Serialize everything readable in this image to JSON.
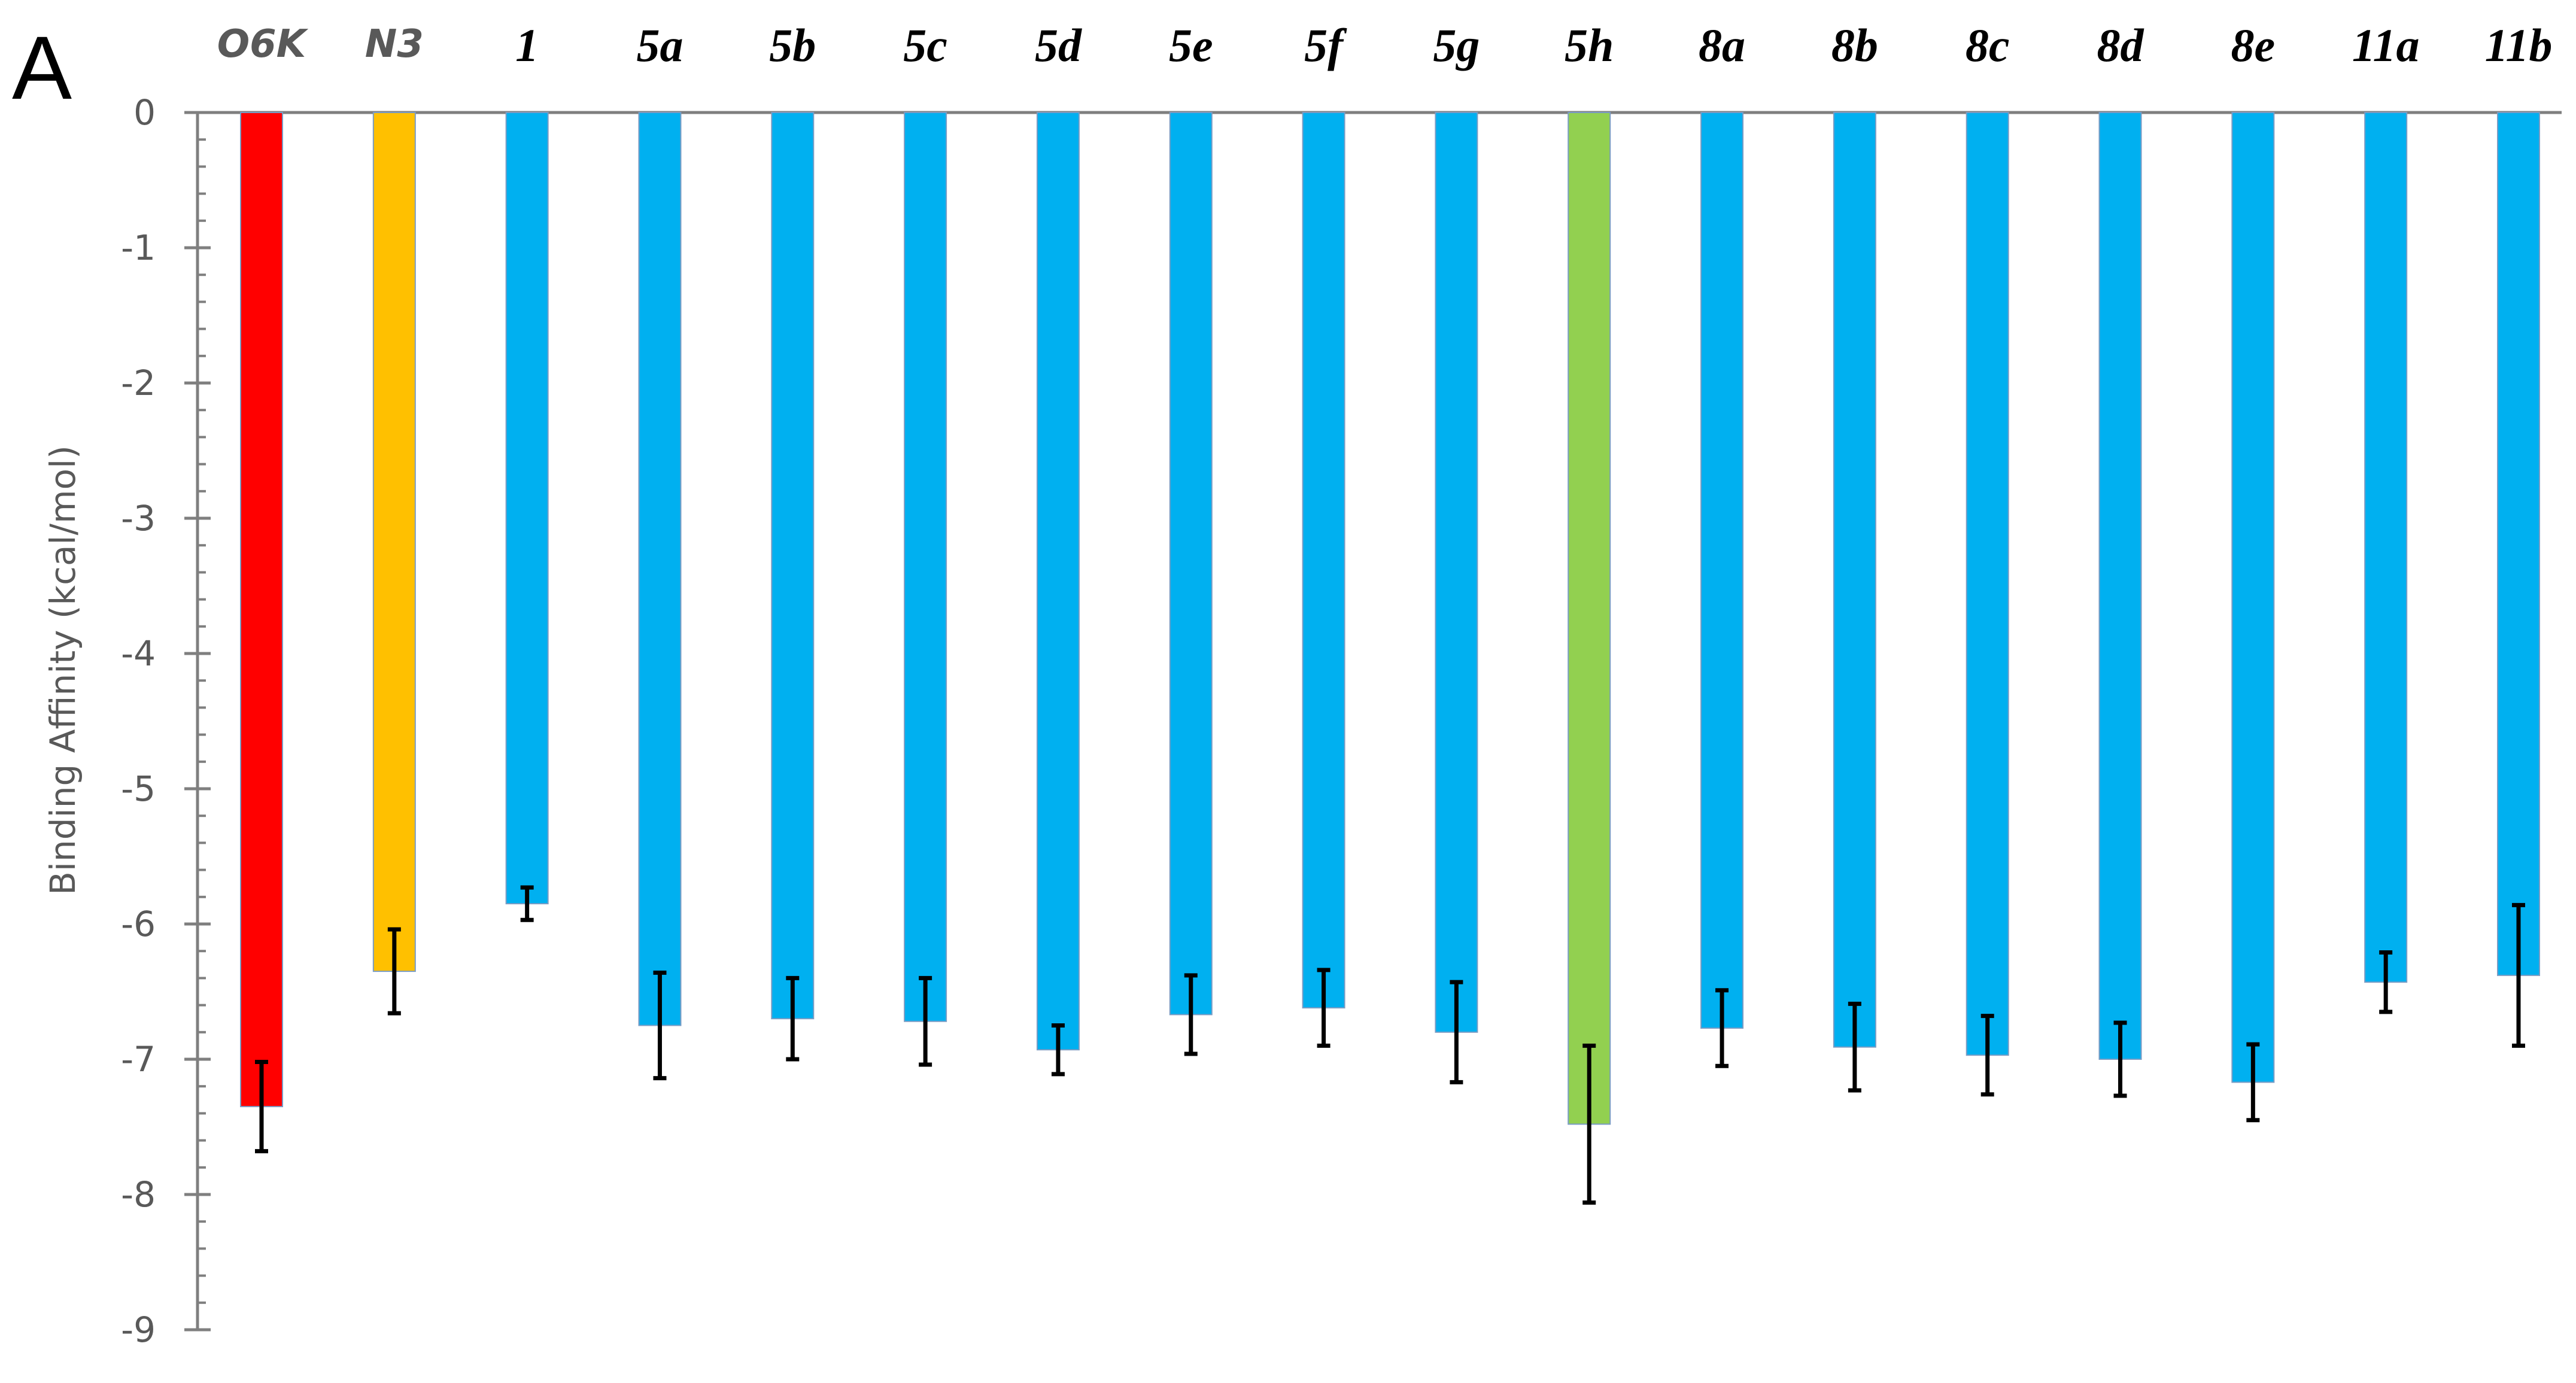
{
  "panel_label": "A",
  "chart_data": {
    "type": "bar",
    "title": "",
    "xlabel": "",
    "ylabel": "Binding Affinity (kcal/mol)",
    "ylim": [
      -9,
      0
    ],
    "yticks": [
      0,
      -1,
      -2,
      -3,
      -4,
      -5,
      -6,
      -7,
      -8,
      -9
    ],
    "grid": false,
    "legend": "none",
    "category_axis_position": "top",
    "categories": [
      "O6K",
      "N3",
      "1",
      "5a",
      "5b",
      "5c",
      "5d",
      "5e",
      "5f",
      "5g",
      "5h",
      "8a",
      "8b",
      "8c",
      "8d",
      "8e",
      "11a",
      "11b"
    ],
    "values": [
      -7.35,
      -6.35,
      -5.85,
      -6.75,
      -6.7,
      -6.72,
      -6.93,
      -6.67,
      -6.62,
      -6.8,
      -7.48,
      -6.77,
      -6.91,
      -6.97,
      -7.0,
      -7.17,
      -6.43,
      -6.38
    ],
    "error": [
      0.33,
      0.31,
      0.12,
      0.39,
      0.3,
      0.32,
      0.18,
      0.29,
      0.28,
      0.37,
      0.58,
      0.28,
      0.32,
      0.29,
      0.27,
      0.28,
      0.22,
      0.52
    ],
    "colors": [
      "#ff0000",
      "#ffc000",
      "#00b0f0",
      "#00b0f0",
      "#00b0f0",
      "#00b0f0",
      "#00b0f0",
      "#00b0f0",
      "#00b0f0",
      "#00b0f0",
      "#92d050",
      "#00b0f0",
      "#00b0f0",
      "#00b0f0",
      "#00b0f0",
      "#00b0f0",
      "#00b0f0",
      "#00b0f0"
    ],
    "label_fonts": [
      "sans",
      "sans",
      "serif",
      "serif",
      "serif",
      "serif",
      "serif",
      "serif",
      "serif",
      "serif",
      "serif",
      "serif",
      "serif",
      "serif",
      "serif",
      "serif",
      "serif",
      "serif"
    ],
    "axis_color": "#7f7f7f",
    "error_bar_color": "#000000"
  }
}
